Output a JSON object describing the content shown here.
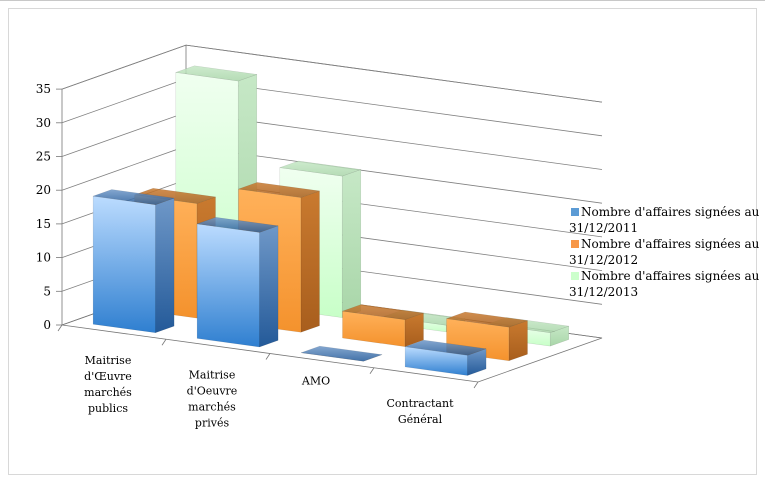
{
  "chart_data": {
    "type": "bar",
    "title": "",
    "xlabel": "",
    "ylabel": "",
    "ylim": [
      0,
      35
    ],
    "yticks": [
      "0",
      "5",
      "10",
      "15",
      "20",
      "25",
      "30",
      "35"
    ],
    "grid": true,
    "legend_position": "right",
    "categories": [
      [
        "Maitrise",
        "d'Œuvre",
        "marchés",
        "publics"
      ],
      [
        "Maitrise",
        "d'Oeuvre",
        "marchés",
        "privés"
      ],
      [
        "AMO"
      ],
      [
        "Contractant",
        "Général"
      ]
    ],
    "series": [
      {
        "name_lines": [
          "Nombre d'affaires signées au",
          "31/12/2011"
        ],
        "values": [
          19,
          17,
          0,
          3
        ],
        "color": "#5b9bd5"
      },
      {
        "name_lines": [
          "Nombre d'affaires signées au",
          "31/12/2012"
        ],
        "values": [
          17,
          20,
          4,
          5
        ],
        "color": "#f79646"
      },
      {
        "name_lines": [
          "Nombre d'affaires signées au",
          "31/12/2013"
        ],
        "values": [
          33,
          21,
          1,
          2
        ],
        "color": "#ccffcc"
      }
    ]
  }
}
